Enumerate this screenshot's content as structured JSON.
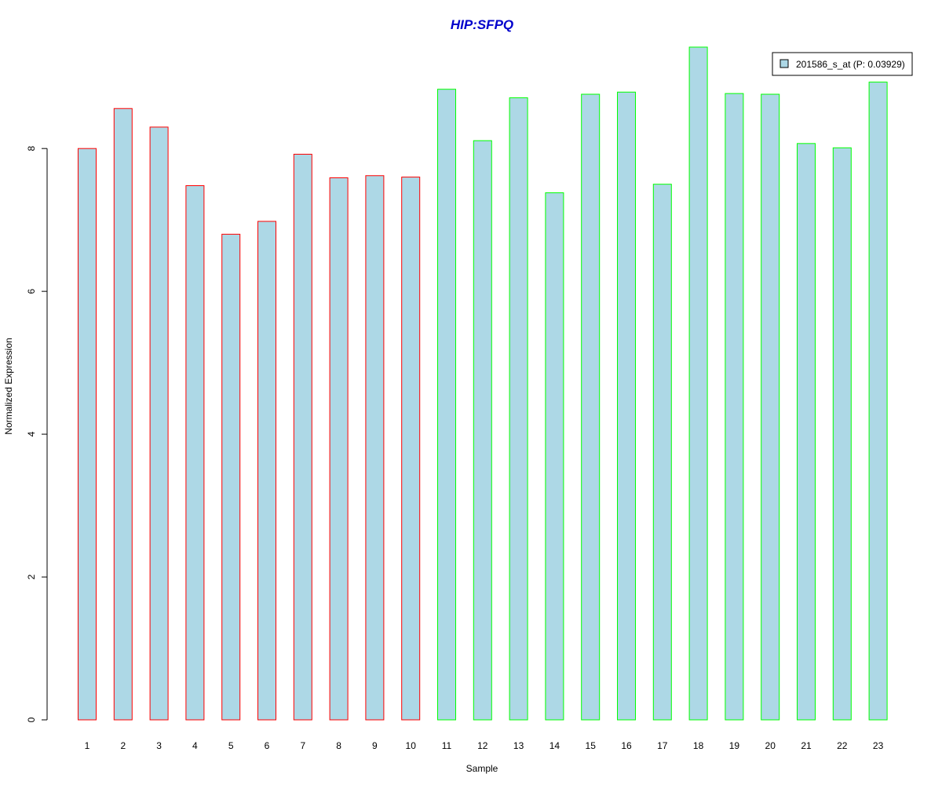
{
  "chart_data": {
    "type": "bar",
    "title": "HIP:SFPQ",
    "xlabel": "Sample",
    "ylabel": "Normalized Expression",
    "categories": [
      "1",
      "2",
      "3",
      "4",
      "5",
      "6",
      "7",
      "8",
      "9",
      "10",
      "11",
      "12",
      "13",
      "14",
      "15",
      "16",
      "17",
      "18",
      "19",
      "20",
      "21",
      "22",
      "23"
    ],
    "series": [
      {
        "name": "201586_s_at (P: 0.03929)",
        "values": [
          8.0,
          8.56,
          8.3,
          7.48,
          6.8,
          6.98,
          7.92,
          7.59,
          7.62,
          7.6,
          8.83,
          8.11,
          8.71,
          7.38,
          8.76,
          8.79,
          7.5,
          9.42,
          8.77,
          8.76,
          8.07,
          8.01,
          8.93
        ],
        "fill_color": "#ADD8E6",
        "border_colors": [
          "#FF0000",
          "#FF0000",
          "#FF0000",
          "#FF0000",
          "#FF0000",
          "#FF0000",
          "#FF0000",
          "#FF0000",
          "#FF0000",
          "#FF0000",
          "#00FF00",
          "#00FF00",
          "#00FF00",
          "#00FF00",
          "#00FF00",
          "#00FF00",
          "#00FF00",
          "#00FF00",
          "#00FF00",
          "#00FF00",
          "#00FF00",
          "#00FF00",
          "#00FF00"
        ]
      }
    ],
    "yticks": [
      0,
      2,
      4,
      6,
      8
    ],
    "ylim": [
      0,
      9.42
    ],
    "grid": false,
    "legend_position": "top-right",
    "colors": {
      "title": "#0000CC",
      "bar_fill": "#ADD8E6",
      "group1_border": "#FF0000",
      "group2_border": "#00FF00"
    }
  }
}
